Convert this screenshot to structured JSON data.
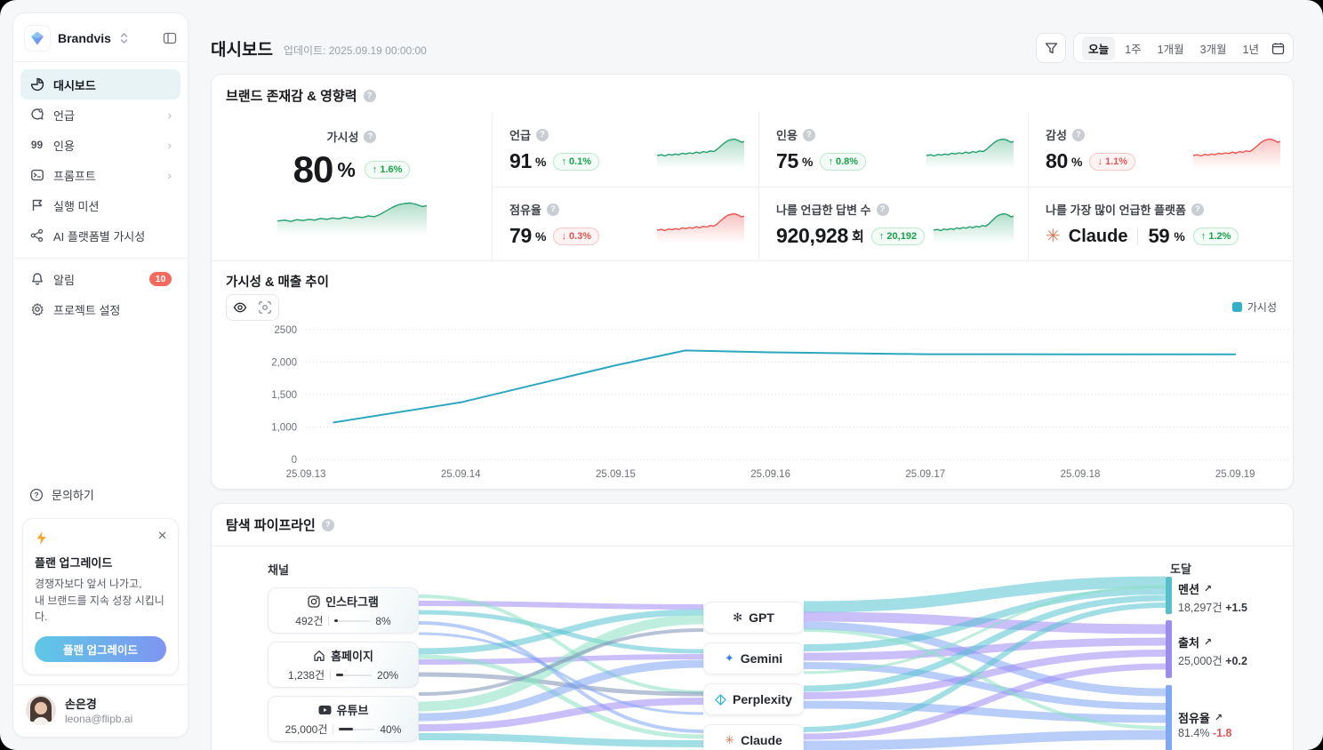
{
  "sidebar": {
    "brand": "Brandvis",
    "menu": [
      {
        "label": "대시보드",
        "active": true
      },
      {
        "label": "언급",
        "chevron": "›"
      },
      {
        "label": "인용",
        "chevron": "›"
      },
      {
        "label": "프롬프트",
        "chevron": "›"
      },
      {
        "label": "실행 미션"
      },
      {
        "label": "AI 플랫폼별 가시성"
      }
    ],
    "alerts": {
      "label": "알림",
      "badge": "10"
    },
    "settings_label": "프로젝트 설정",
    "contact_label": "문의하기",
    "upgrade": {
      "title": "플랜 업그레이드",
      "desc1": "경쟁자보다 앞서 나가고,",
      "desc2": "내 브랜드를 지속 성장 시킵니다.",
      "button": "플랜 업그레이드"
    },
    "user": {
      "name": "손은경",
      "email": "leona@flipb.ai"
    }
  },
  "header": {
    "title": "대시보드",
    "updated": "업데이트: 2025.09.19 00:00:00",
    "ranges": [
      "오늘",
      "1주",
      "1개월",
      "3개월",
      "1년"
    ],
    "active_range": "오늘"
  },
  "kpi": {
    "section_title": "브랜드 존재감 & 영향력",
    "main": {
      "label": "가시성",
      "value": "80",
      "unit": "%",
      "delta": "↑ 1.6%"
    },
    "cells": [
      {
        "label": "언급",
        "value": "91",
        "unit": "%",
        "delta": "↑ 0.1%"
      },
      {
        "label": "인용",
        "value": "75",
        "unit": "%",
        "delta": "↑ 0.8%"
      },
      {
        "label": "감성",
        "value": "80",
        "unit": "%",
        "delta": "↓ 1.1%"
      },
      {
        "label": "점유율",
        "value": "79",
        "unit": "%",
        "delta": "↓ 0.3%"
      },
      {
        "label": "나를 언급한 답변 수",
        "value": "920,928",
        "unit": "회",
        "delta": "↑ 20,192"
      },
      {
        "label": "나를 가장 많이 언급한 플랫폼",
        "platform": "Claude",
        "value": "59",
        "unit": "%",
        "delta": "↑ 1.2%"
      }
    ]
  },
  "trend": {
    "title": "가시성 & 매출 추이",
    "legend": "가시성",
    "line_color": "#2da7bf",
    "y_ticks": [
      "2500",
      "2,000",
      "1,500",
      "1,000",
      "0"
    ],
    "x_ticks": [
      "25.09.13",
      "25.09.14",
      "25.09.15",
      "25.09.16",
      "25.09.17",
      "25.09.18",
      "25.09.19"
    ]
  },
  "chart_data": [
    {
      "type": "line",
      "title": "가시성 & 매출 추이",
      "series": [
        {
          "name": "가시성",
          "x": [
            "25.09.13",
            "25.09.14",
            "25.09.15",
            "25.09.16",
            "25.09.17",
            "25.09.18",
            "25.09.19"
          ],
          "values": [
            1070,
            1380,
            1950,
            2150,
            2120,
            2120,
            2120
          ]
        }
      ],
      "points": [
        [
          0.18,
          1070
        ],
        [
          1,
          1380
        ],
        [
          2,
          1950
        ],
        [
          2.45,
          2180
        ],
        [
          3,
          2150
        ],
        [
          4,
          2122
        ],
        [
          5,
          2120
        ],
        [
          6,
          2120
        ]
      ],
      "peak_note": "peak ~2180 between 25.09.15 and 25.09.16",
      "ylim": [
        0,
        2500
      ],
      "y_tick_values": [
        0,
        1000,
        1500,
        2000,
        2500
      ],
      "grid": "dotted horizontal",
      "legend_position": "top-right"
    },
    {
      "type": "sankey",
      "title": "탐색 파이프라인",
      "sources": [
        {
          "name": "인스타그램",
          "count": "492건",
          "pct": "8%"
        },
        {
          "name": "홈페이지",
          "count": "1,238건",
          "pct": "20%"
        },
        {
          "name": "유튜브",
          "count": "25,000건",
          "pct": "40%"
        }
      ],
      "middle": [
        "GPT",
        "Gemini",
        "Perplexity",
        "Claude"
      ],
      "targets": [
        {
          "name": "멘션",
          "value": "18,297건",
          "delta": "+1.5"
        },
        {
          "name": "출처",
          "value": "25,000건",
          "delta": "+0.2"
        },
        {
          "name": "점유율",
          "value": "81.4%",
          "delta": "-1.8"
        }
      ]
    }
  ],
  "pipeline": {
    "title": "탐색 파이프라인",
    "channel_label": "채널",
    "reach_label": "도달",
    "channels": [
      {
        "name": "인스타그램",
        "count": "492건",
        "pct": "8%"
      },
      {
        "name": "홈페이지",
        "count": "1,238건",
        "pct": "20%"
      },
      {
        "name": "유튜브",
        "count": "25,000건",
        "pct": "40%"
      }
    ],
    "platforms": [
      {
        "name": "GPT"
      },
      {
        "name": "Gemini"
      },
      {
        "name": "Perplexity"
      },
      {
        "name": "Claude"
      }
    ],
    "reach": [
      {
        "name": "멘션",
        "value": "18,297건",
        "delta": "+1.5",
        "color": "#56bfcb"
      },
      {
        "name": "출처",
        "value": "25,000건",
        "delta": "+0.2",
        "color": "#9b8cf2"
      },
      {
        "name": "점유율",
        "value": "81.4%",
        "delta": "-1.8",
        "color": "#7fa9f5"
      }
    ]
  },
  "colors": {
    "accent_teal": "#35b0c8",
    "green": "#22a06b",
    "red": "#ef5350",
    "ribbon_teal": "#56c3cf",
    "ribbon_purple": "#a18af5",
    "ribbon_blue": "#7ea6f4",
    "ribbon_mint": "#8ae0c2",
    "ribbon_slate": "#7c8fb6"
  }
}
